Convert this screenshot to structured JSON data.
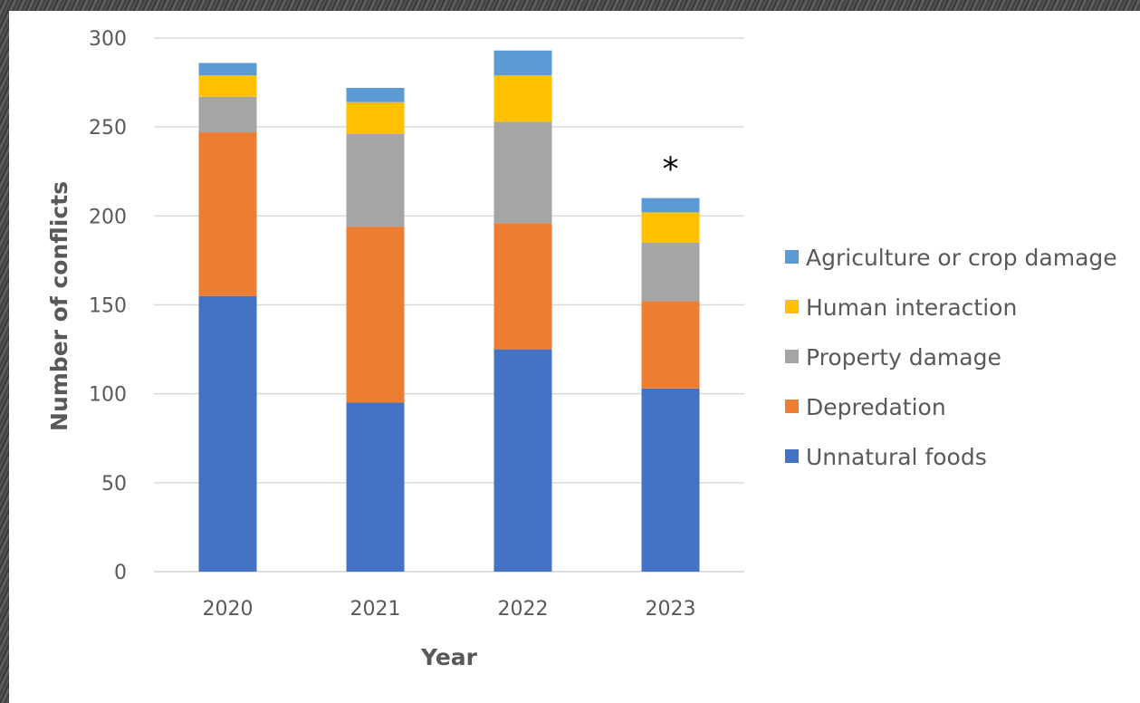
{
  "chart_data": {
    "type": "bar",
    "stacked": true,
    "title": "",
    "xlabel": "Year",
    "ylabel": "Number of conflicts",
    "categories": [
      "2020",
      "2021",
      "2022",
      "2023"
    ],
    "ylim": [
      0,
      300
    ],
    "yticks": [
      0,
      50,
      100,
      150,
      200,
      250,
      300
    ],
    "grid": true,
    "legend_position": "right",
    "series": [
      {
        "name": "Unnatural foods",
        "color": "#4472C4",
        "values": [
          155,
          95,
          125,
          103
        ]
      },
      {
        "name": "Depredation",
        "color": "#ED7D31",
        "values": [
          92,
          99,
          71,
          49
        ]
      },
      {
        "name": "Property damage",
        "color": "#A5A5A5",
        "values": [
          20,
          52,
          57,
          33
        ]
      },
      {
        "name": "Human interaction",
        "color": "#FFC000",
        "values": [
          12,
          18,
          26,
          17
        ]
      },
      {
        "name": "Agriculture or crop damage",
        "color": "#5B9BD5",
        "values": [
          7,
          8,
          14,
          8
        ]
      }
    ],
    "annotations": [
      {
        "text": "*",
        "category": "2023"
      }
    ]
  }
}
